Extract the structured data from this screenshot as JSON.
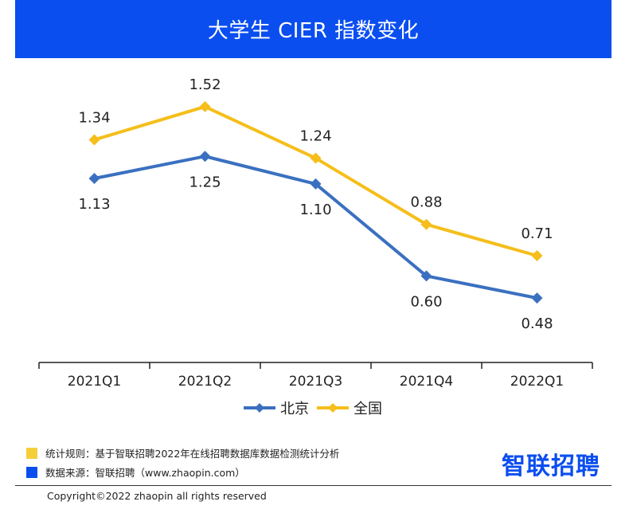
{
  "header": {
    "title": "大学生 CIER 指数变化"
  },
  "chart_data": {
    "type": "line",
    "title": "大学生 CIER 指数变化",
    "categories": [
      "2021Q1",
      "2021Q2",
      "2021Q3",
      "2021Q4",
      "2022Q1"
    ],
    "ylim": [
      0,
      2
    ],
    "grid": false,
    "legend": "bottom",
    "series": [
      {
        "name": "北京",
        "color": "#3a70c0",
        "values": [
          1.13,
          1.25,
          1.1,
          0.6,
          0.48
        ],
        "label_position": "below"
      },
      {
        "name": "全国",
        "color": "#f5be1a",
        "values": [
          1.34,
          1.52,
          1.24,
          0.88,
          0.71
        ],
        "label_position": "above"
      }
    ]
  },
  "footer": {
    "rule_label": "统计规则：基于智联招聘2022年在线招聘数据库数据检测统计分析",
    "rule_color": "#f5cf3a",
    "source_label": "数据来源：智联招聘（www.zhaopin.com）",
    "source_color": "#0a4ef0",
    "brand": "智联招聘",
    "copyright": "Copyright©2022 zhaopin all rights reserved"
  }
}
